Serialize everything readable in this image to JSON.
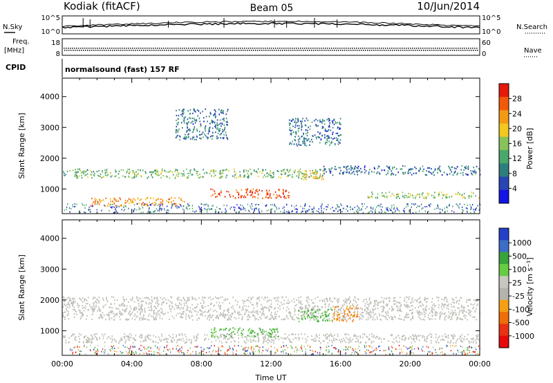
{
  "header": {
    "station": "Kodiak (fitACF)",
    "beam": "Beam 05",
    "date": "10/Jun/2014"
  },
  "side_labels": {
    "nsky": "N.Sky",
    "nsearch": "N.Search",
    "freq_line1": "Freq.",
    "freq_line2": "[MHz]",
    "nave": "Nave",
    "cpid": "CPID",
    "cpid_value": "normalsound (fast) 157 RF"
  },
  "colors": {
    "power_scale": [
      "#1414e6",
      "#2845b4",
      "#2e7e7e",
      "#4aa86a",
      "#88c25a",
      "#f2c81e",
      "#f39a14",
      "#f25a0a",
      "#e61a0a"
    ],
    "velocity_scale": [
      "#2440c8",
      "#3c6ec8",
      "#3aa23a",
      "#66cc44",
      "#c8c8c0",
      "#b4b4ac",
      "#f5a014",
      "#f06e0a",
      "#e83214",
      "#e60a0a"
    ],
    "ground_scatter": "#bebeb6"
  },
  "chart_data": [
    {
      "type": "line",
      "name": "noise-panel",
      "series": [
        {
          "name": "N.Sky"
        },
        {
          "name": "N.Search"
        }
      ],
      "y_ticks_left": [
        "10^5",
        "10^0"
      ],
      "y_ticks_right": [
        "10^5",
        "10^0"
      ],
      "xlim": [
        0,
        24
      ]
    },
    {
      "type": "scatter",
      "name": "freq-nave-panel",
      "series": [
        {
          "name": "Freq. [MHz]"
        },
        {
          "name": "Nave"
        }
      ],
      "y_ticks_left": [
        "18",
        "8"
      ],
      "y_ticks_right": [
        "60",
        "0"
      ],
      "xlim": [
        0,
        24
      ]
    },
    {
      "type": "heatmap",
      "name": "power-panel",
      "ylabel": "Slant Range [km]",
      "ylim": [
        200,
        4600
      ],
      "yticks": [
        1000,
        2000,
        3000,
        4000
      ],
      "xlim": [
        0,
        24
      ],
      "colorbar": {
        "label": "Power [dB]",
        "ticks": [
          "4",
          "8",
          "12",
          "16",
          "20",
          "24",
          "28"
        ],
        "range": [
          0,
          32
        ]
      },
      "regions": [
        {
          "t0": 0.0,
          "t1": 15.0,
          "r0": 1350,
          "r1": 1650,
          "level": 14
        },
        {
          "t0": 15.0,
          "t1": 24.0,
          "r0": 1450,
          "r1": 1750,
          "level": 8
        },
        {
          "t0": 1.5,
          "t1": 7.0,
          "r0": 450,
          "r1": 720,
          "level": 24
        },
        {
          "t0": 8.5,
          "t1": 13.0,
          "r0": 700,
          "r1": 1000,
          "level": 28
        },
        {
          "t0": 13.5,
          "t1": 15.0,
          "r0": 1300,
          "r1": 1600,
          "level": 20
        },
        {
          "t0": 6.5,
          "t1": 9.5,
          "r0": 2600,
          "r1": 3600,
          "level": 8
        },
        {
          "t0": 13.0,
          "t1": 16.0,
          "r0": 2400,
          "r1": 3300,
          "level": 8
        },
        {
          "t0": 17.5,
          "t1": 24.0,
          "r0": 700,
          "r1": 900,
          "level": 16
        }
      ]
    },
    {
      "type": "heatmap",
      "name": "velocity-panel",
      "ylabel": "Slant Range [km]",
      "xlabel": "Time UT",
      "ylim": [
        200,
        4600
      ],
      "yticks": [
        1000,
        2000,
        3000,
        4000
      ],
      "xlim": [
        0,
        24
      ],
      "xticks": [
        "00:00",
        "04:00",
        "08:00",
        "12:00",
        "16:00",
        "20:00",
        "00:00"
      ],
      "colorbar": {
        "label": "Velocity [m s⁻¹]",
        "ticks": [
          "1000",
          "500",
          "100",
          "25",
          "-25",
          "-100",
          "-500",
          "-1000"
        ]
      },
      "regions": [
        {
          "t0": 0.0,
          "t1": 24.0,
          "r0": 1350,
          "r1": 2100,
          "kind": "ground"
        },
        {
          "t0": 0.0,
          "t1": 24.0,
          "r0": 600,
          "r1": 900,
          "kind": "ground"
        },
        {
          "t0": 8.5,
          "t1": 12.5,
          "r0": 800,
          "r1": 1100,
          "kind": "positive",
          "velocity": 200
        },
        {
          "t0": 13.5,
          "t1": 15.5,
          "r0": 1300,
          "r1": 1700,
          "kind": "positive",
          "velocity": 100
        },
        {
          "t0": 15.5,
          "t1": 17.0,
          "r0": 1300,
          "r1": 1800,
          "kind": "negative",
          "velocity": -150
        }
      ]
    }
  ]
}
